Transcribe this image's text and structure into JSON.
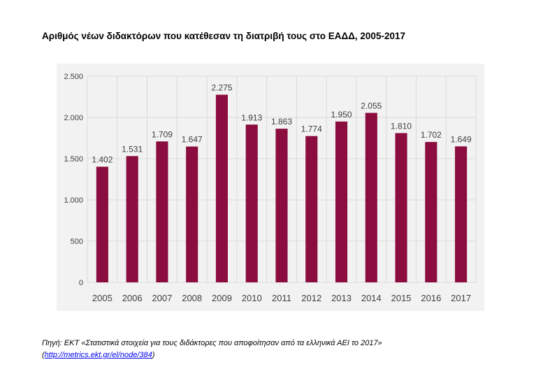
{
  "title": "Αριθμός νέων διδακτόρων που κατέθεσαν τη διατριβή τους στο ΕΑΔΔ, 2005-2017",
  "source": {
    "text": "Πηγή: ΕΚΤ «Στατιστικά στοιχεία για τους διδάκτορες που αποφοίτησαν από τα ελληνικά ΑΕΙ το 2017»",
    "open_paren": "(",
    "link": "http://metrics.ekt.gr/el/node/384",
    "close_paren": ")"
  },
  "colors": {
    "bar": "#8b0d3f",
    "background": "#f2f2f2",
    "grid": "#d9d9d9"
  },
  "chart_data": {
    "type": "bar",
    "title": "Αριθμός νέων διδακτόρων που κατέθεσαν τη διατριβή τους στο ΕΑΔΔ, 2005-2017",
    "xlabel": "",
    "ylabel": "",
    "categories": [
      "2005",
      "2006",
      "2007",
      "2008",
      "2009",
      "2010",
      "2011",
      "2012",
      "2013",
      "2014",
      "2015",
      "2016",
      "2017"
    ],
    "values": [
      1402,
      1531,
      1709,
      1647,
      2275,
      1913,
      1863,
      1774,
      1950,
      2055,
      1810,
      1702,
      1649
    ],
    "data_labels": [
      "1.402",
      "1.531",
      "1.709",
      "1.647",
      "2.275",
      "1.913",
      "1.863",
      "1.774",
      "1.950",
      "2.055",
      "1.810",
      "1.702",
      "1.649"
    ],
    "ylim": [
      0,
      2500
    ],
    "yticks": [
      0,
      500,
      1000,
      1500,
      2000,
      2500
    ],
    "ytick_labels": [
      "0",
      "500",
      "1.000",
      "1.500",
      "2.000",
      "2.500"
    ],
    "grid": true,
    "legend": "none"
  }
}
